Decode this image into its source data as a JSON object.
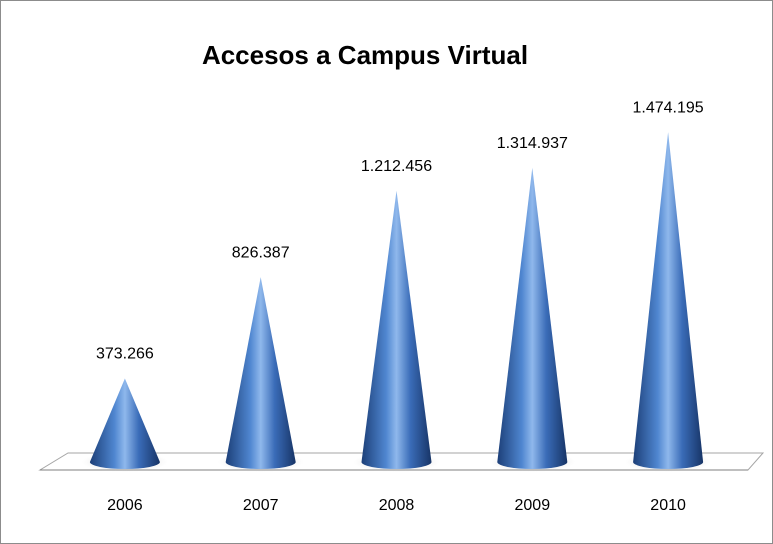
{
  "chart_data": {
    "type": "cone",
    "title": "Accesos a Campus  Virtual",
    "categories": [
      "2006",
      "2007",
      "2008",
      "2009",
      "2010"
    ],
    "values": [
      373266,
      826387,
      1212456,
      1314937,
      1474195
    ],
    "value_labels": [
      "373.266",
      "826.387",
      "1.212.456",
      "1.314.937",
      "1.474.195"
    ],
    "color": "#2f5fa8",
    "ylim": [
      0,
      1600000
    ]
  }
}
